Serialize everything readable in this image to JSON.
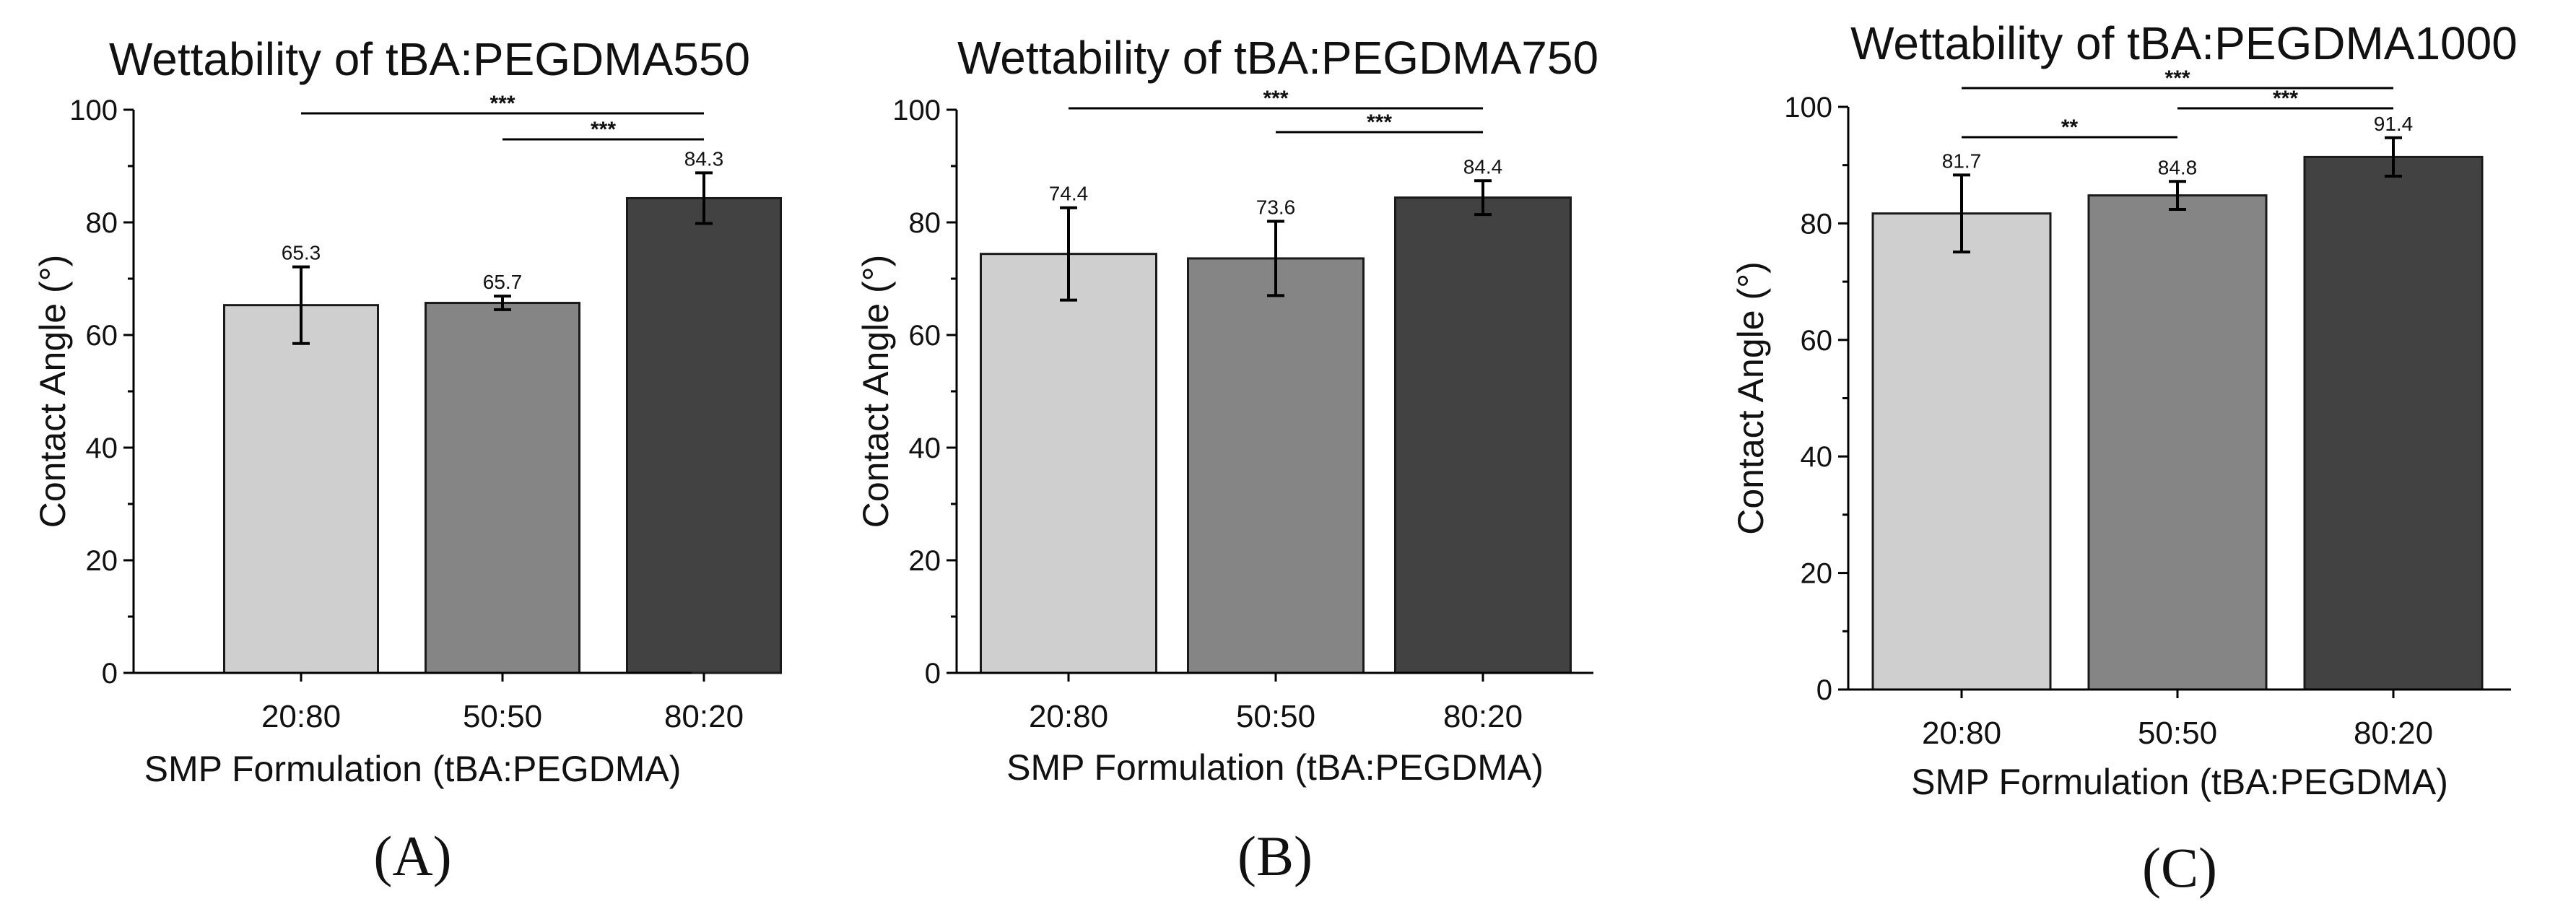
{
  "chart_data": [
    {
      "type": "bar",
      "panel": "(A)",
      "title": "Wettability of tBA:PEGDMA550",
      "xlabel": "SMP Formulation (tBA:PEGDMA)",
      "ylabel": "Contact Angle (°)",
      "ylim": [
        0,
        100
      ],
      "yticks": [
        0,
        20,
        40,
        60,
        80,
        100
      ],
      "categories": [
        "20:80",
        "50:50",
        "80:20"
      ],
      "values": [
        65.3,
        65.7,
        84.3
      ],
      "value_labels": [
        "65.3",
        "65.7",
        "84.3"
      ],
      "errors": [
        6.8,
        1.2,
        4.5
      ],
      "bar_colors": [
        "#cfcfcf",
        "#858585",
        "#424242"
      ],
      "significance": [
        {
          "from": 0,
          "to": 2,
          "label": "***"
        },
        {
          "from": 1,
          "to": 2,
          "label": "***"
        }
      ],
      "grid": false,
      "legend": "none"
    },
    {
      "type": "bar",
      "panel": "(B)",
      "title": "Wettability of tBA:PEGDMA750",
      "xlabel": "SMP Formulation (tBA:PEGDMA)",
      "ylabel": "Contact Angle (°)",
      "ylim": [
        0,
        100
      ],
      "yticks": [
        0,
        20,
        40,
        60,
        80,
        100
      ],
      "categories": [
        "20:80",
        "50:50",
        "80:20"
      ],
      "values": [
        74.4,
        73.6,
        84.4
      ],
      "value_labels": [
        "74.4",
        "73.6",
        "84.4"
      ],
      "errors": [
        8.2,
        6.6,
        3.0
      ],
      "bar_colors": [
        "#cfcfcf",
        "#858585",
        "#424242"
      ],
      "significance": [
        {
          "from": 0,
          "to": 2,
          "label": "***"
        },
        {
          "from": 1,
          "to": 2,
          "label": "***"
        }
      ],
      "grid": false,
      "legend": "none"
    },
    {
      "type": "bar",
      "panel": "(C)",
      "title": "Wettability of tBA:PEGDMA1000",
      "xlabel": "SMP Formulation (tBA:PEGDMA)",
      "ylabel": "Contact Angle (°)",
      "ylim": [
        0,
        100
      ],
      "yticks": [
        0,
        20,
        40,
        60,
        80,
        100
      ],
      "categories": [
        "20:80",
        "50:50",
        "80:20"
      ],
      "values": [
        81.7,
        84.8,
        91.4
      ],
      "value_labels": [
        "81.7",
        "84.8",
        "91.4"
      ],
      "errors": [
        6.6,
        2.4,
        3.3
      ],
      "bar_colors": [
        "#cfcfcf",
        "#858585",
        "#424242"
      ],
      "significance": [
        {
          "from": 0,
          "to": 2,
          "label": "***"
        },
        {
          "from": 0,
          "to": 1,
          "label": "**"
        },
        {
          "from": 1,
          "to": 2,
          "label": "***"
        }
      ],
      "grid": false,
      "legend": "none"
    }
  ]
}
